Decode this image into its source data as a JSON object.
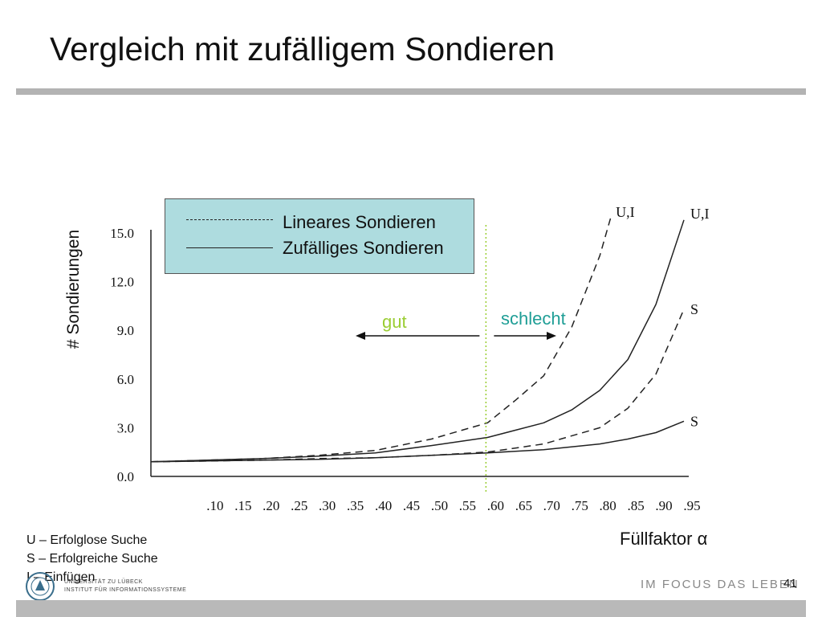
{
  "slide": {
    "title": "Vergleich mit zufälligem Sondieren",
    "page_number": "41",
    "slogan": "IM FOCUS DAS LEBEN",
    "logo_text": [
      "UNIVERSITÄT ZU LÜBECK",
      "INSTITUT FÜR INFORMATIONSSYSTEME"
    ]
  },
  "footnotes": [
    "U – Erfolglose Suche",
    "S – Erfolgreiche Suche",
    "I – Einfügen"
  ],
  "annotations": {
    "good": "gut",
    "bad": "schlecht",
    "threshold_x": 0.6
  },
  "colors": {
    "good": "#9acd32",
    "bad": "#1f9e96",
    "legend_bg": "#aedcdf",
    "threshold_line": "#9acd32"
  },
  "chart_data": {
    "type": "line",
    "xlabel": "Füllfaktor α",
    "ylabel": "# Sondierungen",
    "x_ticks": [
      ".10",
      ".15",
      ".20",
      ".25",
      ".30",
      ".35",
      ".40",
      ".45",
      ".50",
      ".55",
      ".60",
      ".65",
      ".70",
      ".75",
      ".80",
      ".85",
      ".90",
      ".95"
    ],
    "y_ticks": [
      "0.0",
      "3.0",
      "6.0",
      "9.0",
      "12.0",
      "15.0"
    ],
    "xlim": [
      0.0,
      0.95
    ],
    "ylim": [
      0,
      15
    ],
    "legend": [
      {
        "label": "Lineares Sondieren",
        "style": "dashed"
      },
      {
        "label": "Zufälliges Sondieren",
        "style": "solid"
      }
    ],
    "series": [
      {
        "name": "U,I",
        "style": "dashed",
        "method": "linear",
        "points": [
          [
            0.0,
            0.9
          ],
          [
            0.1,
            1.0
          ],
          [
            0.2,
            1.1
          ],
          [
            0.3,
            1.3
          ],
          [
            0.4,
            1.6
          ],
          [
            0.5,
            2.3
          ],
          [
            0.6,
            3.3
          ],
          [
            0.65,
            4.7
          ],
          [
            0.7,
            6.2
          ],
          [
            0.75,
            9.2
          ],
          [
            0.8,
            13.6
          ],
          [
            0.82,
            16.0
          ]
        ]
      },
      {
        "name": "U,I",
        "style": "solid",
        "method": "random",
        "points": [
          [
            0.0,
            0.9
          ],
          [
            0.1,
            1.0
          ],
          [
            0.2,
            1.1
          ],
          [
            0.3,
            1.25
          ],
          [
            0.4,
            1.45
          ],
          [
            0.5,
            1.9
          ],
          [
            0.6,
            2.4
          ],
          [
            0.7,
            3.3
          ],
          [
            0.75,
            4.1
          ],
          [
            0.8,
            5.3
          ],
          [
            0.85,
            7.2
          ],
          [
            0.9,
            10.6
          ],
          [
            0.95,
            15.8
          ]
        ]
      },
      {
        "name": "S",
        "style": "dashed",
        "method": "linear",
        "points": [
          [
            0.0,
            0.9
          ],
          [
            0.1,
            0.95
          ],
          [
            0.2,
            1.0
          ],
          [
            0.3,
            1.1
          ],
          [
            0.4,
            1.15
          ],
          [
            0.5,
            1.3
          ],
          [
            0.6,
            1.5
          ],
          [
            0.7,
            2.0
          ],
          [
            0.8,
            3.0
          ],
          [
            0.85,
            4.2
          ],
          [
            0.9,
            6.3
          ],
          [
            0.95,
            10.3
          ]
        ]
      },
      {
        "name": "S",
        "style": "solid",
        "method": "random",
        "points": [
          [
            0.0,
            0.9
          ],
          [
            0.1,
            0.95
          ],
          [
            0.2,
            1.0
          ],
          [
            0.3,
            1.05
          ],
          [
            0.4,
            1.15
          ],
          [
            0.5,
            1.3
          ],
          [
            0.6,
            1.45
          ],
          [
            0.7,
            1.65
          ],
          [
            0.8,
            2.0
          ],
          [
            0.85,
            2.3
          ],
          [
            0.9,
            2.7
          ],
          [
            0.95,
            3.4
          ]
        ]
      }
    ]
  }
}
